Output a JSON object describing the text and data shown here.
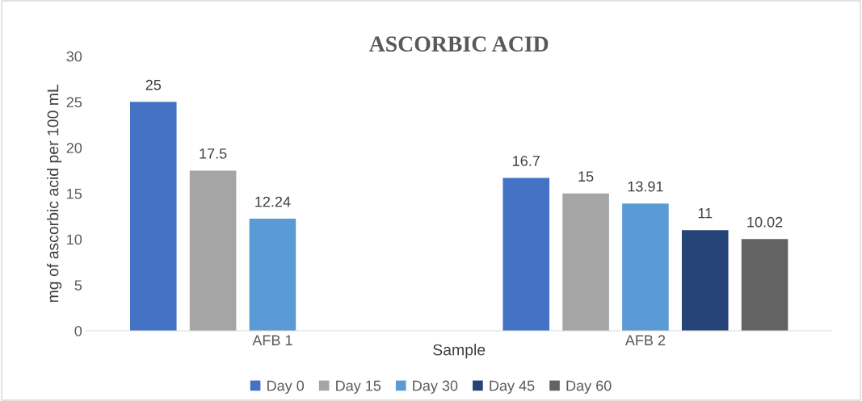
{
  "chart_data": {
    "type": "bar",
    "title": "ASCORBIC ACID",
    "xlabel": "Sample",
    "ylabel": "mg of ascorbic acid per 100 mL",
    "categories": [
      "AFB 1",
      "AFB 2"
    ],
    "series": [
      {
        "name": "Day 0",
        "color": "#4472c4",
        "values": [
          25,
          16.7
        ]
      },
      {
        "name": "Day 15",
        "color": "#a5a5a5",
        "values": [
          17.5,
          15
        ]
      },
      {
        "name": "Day 30",
        "color": "#5b9bd5",
        "values": [
          12.24,
          13.91
        ]
      },
      {
        "name": "Day 45",
        "color": "#264478",
        "values": [
          null,
          11
        ]
      },
      {
        "name": "Day 60",
        "color": "#636363",
        "values": [
          null,
          10.02
        ]
      }
    ],
    "ylim": [
      0,
      30
    ],
    "yticks": [
      0,
      5,
      10,
      15,
      20,
      25,
      30
    ],
    "data_labels": true,
    "legend": "bottom",
    "grid": false
  }
}
